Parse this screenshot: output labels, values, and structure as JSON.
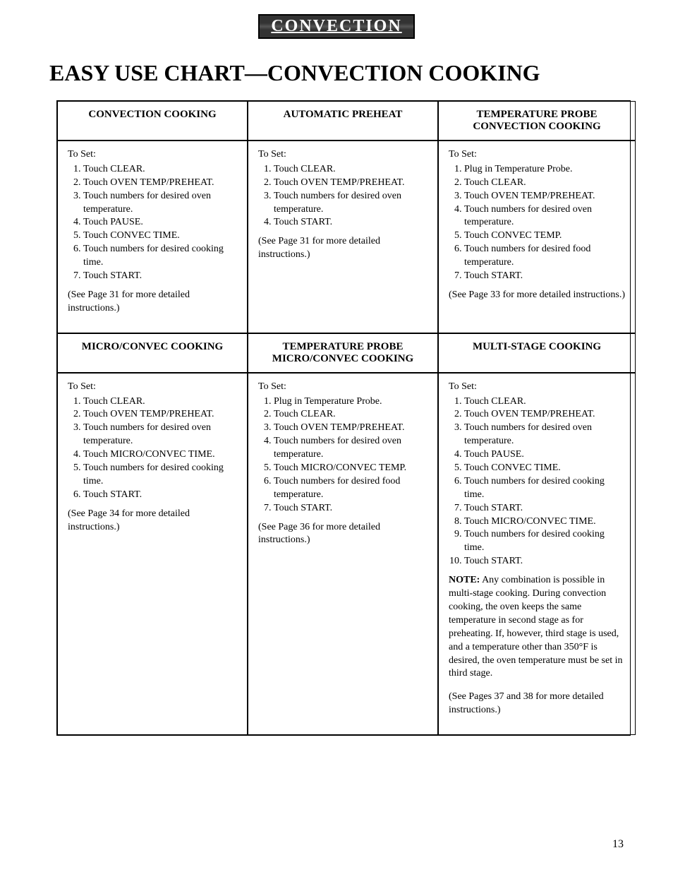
{
  "banner": {
    "text": "CONVECTION"
  },
  "pageTitle": "EASY USE CHART—CONVECTION COOKING",
  "headers": {
    "r1c0": "CONVECTION COOKING",
    "r1c1": "AUTOMATIC PREHEAT",
    "r1c2_l1": "TEMPERATURE PROBE",
    "r1c2_l2": "CONVECTION COOKING",
    "r2c0": "MICRO/CONVEC COOKING",
    "r2c1_l1": "TEMPERATURE PROBE",
    "r2c1_l2": "MICRO/CONVEC COOKING",
    "r2c2": "MULTI-STAGE COOKING"
  },
  "labels": {
    "toSet": "To Set",
    "toSetColon": "To Set:"
  },
  "cells": {
    "c1": {
      "steps": [
        "Touch CLEAR.",
        "Touch OVEN TEMP/PREHEAT.",
        "Touch numbers for desired oven temperature.",
        "Touch PAUSE.",
        "Touch CONVEC TIME.",
        "Touch numbers for desired cooking time.",
        "Touch START."
      ],
      "note": "(See Page 31 for more detailed instructions.)"
    },
    "c2": {
      "steps": [
        "Touch CLEAR.",
        "Touch OVEN TEMP/PREHEAT.",
        "Touch numbers for desired oven temperature.",
        "Touch START."
      ],
      "note": "(See Page 31 for more detailed instructions.)"
    },
    "c3": {
      "steps": [
        "Plug in Temperature Probe.",
        "Touch CLEAR.",
        "Touch OVEN TEMP/PREHEAT.",
        "Touch numbers for desired oven temperature.",
        "Touch CONVEC TEMP.",
        "Touch numbers for desired food temperature.",
        "Touch START."
      ],
      "note": "(See Page 33 for more detailed instructions.)"
    },
    "c4": {
      "steps": [
        "Touch CLEAR.",
        "Touch OVEN TEMP/PREHEAT.",
        "Touch numbers for desired oven temperature.",
        "Touch MICRO/CONVEC TIME.",
        "Touch numbers for desired cooking time.",
        "Touch START."
      ],
      "note": "(See Page 34 for more detailed instructions.)"
    },
    "c5": {
      "steps": [
        "Plug in Temperature Probe.",
        "Touch CLEAR.",
        "Touch OVEN TEMP/PREHEAT.",
        "Touch numbers for desired oven temperature.",
        "Touch MICRO/CONVEC TEMP.",
        "Touch numbers for desired food temperature.",
        "Touch START."
      ],
      "note": "(See Page 36 for more detailed instructions.)"
    },
    "c6": {
      "steps": [
        "Touch CLEAR.",
        "Touch OVEN TEMP/PREHEAT.",
        "Touch numbers for desired oven temperature.",
        "Touch PAUSE.",
        "Touch CONVEC TIME.",
        "Touch numbers for desired cooking time.",
        "Touch START.",
        "Touch MICRO/CONVEC TIME.",
        "Touch numbers for desired cooking time.",
        "Touch START."
      ],
      "noteLabel": "NOTE:",
      "noteBody": " Any combination is possible in multi-stage cooking. During convection cooking, the oven keeps the same temperature in second stage as for preheating. If, however, third stage is used, and a temperature other than 350°F is desired, the oven temperature must be set in third stage.",
      "note2": "(See Pages 37 and 38 for more detailed instructions.)"
    }
  },
  "pageNum": "13"
}
